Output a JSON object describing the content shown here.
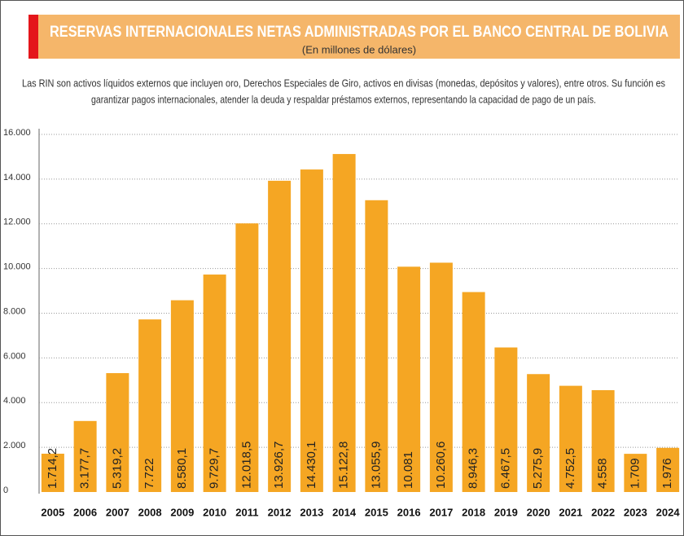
{
  "chart_data": {
    "type": "bar",
    "title": "RESERVAS INTERNACIONALES NETAS ADMINISTRADAS POR EL BANCO CENTRAL DE BOLIVIA",
    "subtitle": "(En millones de dólares)",
    "description": [
      "Las RIN son activos líquidos externos que incluyen oro, Derechos Especiales de Giro, activos en divisas (monedas, depósitos y valores), entre otros. Su función es",
      "garantizar pagos internacionales, atender la deuda y respaldar préstamos externos, representando la capacidad de pago de un país."
    ],
    "categories": [
      "2005",
      "2006",
      "2007",
      "2008",
      "2009",
      "2010",
      "2011",
      "2012",
      "2013",
      "2014",
      "2015",
      "2016",
      "2017",
      "2018",
      "2019",
      "2020",
      "2021",
      "2022",
      "2023",
      "2024"
    ],
    "values": [
      1714.2,
      3177.7,
      5319.2,
      7722,
      8580.1,
      9729.7,
      12018.5,
      13926.7,
      14430.1,
      15122.8,
      13055.9,
      10081,
      10260.6,
      8946.3,
      6467.5,
      5275.9,
      4752.5,
      4558,
      1709,
      1976
    ],
    "value_labels": [
      "1.714,2",
      "3.177,7",
      "5.319,2",
      "7.722",
      "8.580,1",
      "9.729,7",
      "12.018,5",
      "13.926,7",
      "14.430,1",
      "15.122,8",
      "13.055,9",
      "10.081",
      "10.260,6",
      "8.946,3",
      "6.467,5",
      "5.275,9",
      "4.752,5",
      "4.558",
      "1.709",
      "1.976"
    ],
    "color": "#f5a623",
    "ylim": [
      0,
      16000
    ],
    "yticks": [
      0,
      {
        "value": 2000,
        "label": "2.000"
      },
      {
        "value": 4000,
        "label": "4.000"
      },
      {
        "value": 6000,
        "label": "6.000"
      },
      {
        "value": 8000,
        "label": "8.000"
      },
      {
        "value": 10000,
        "label": "10.000"
      },
      {
        "value": 12000,
        "label": "12.000"
      },
      {
        "value": 14000,
        "label": "14.000"
      },
      {
        "value": 16000,
        "label": "16.000"
      }
    ],
    "grid": true
  }
}
